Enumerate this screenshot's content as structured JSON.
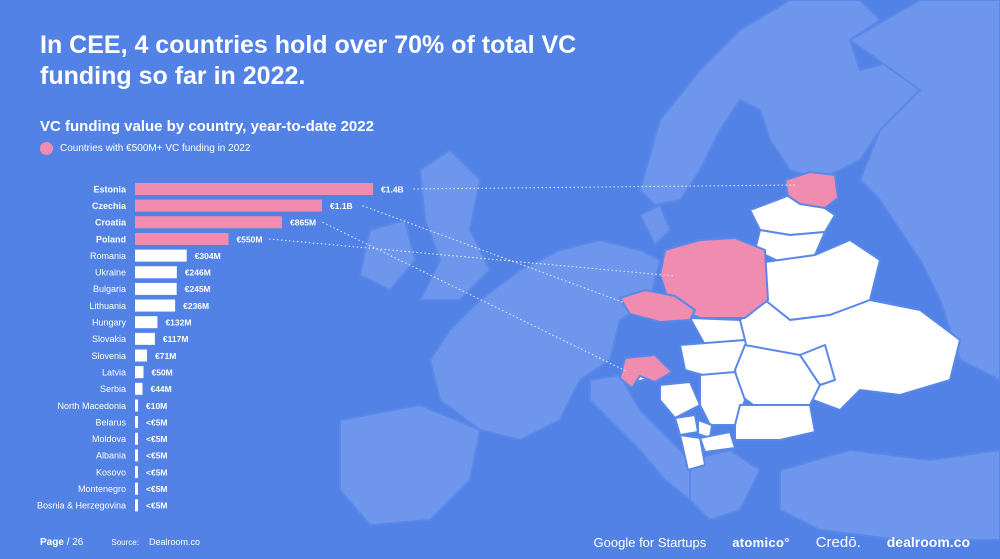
{
  "title": "In CEE, 4 countries hold over 70% of total VC funding so far in 2022.",
  "subtitle": "VC funding value by country, year-to-date 2022",
  "legend": "Countries with €500M+ VC funding in 2022",
  "colors": {
    "background": "#5282e6",
    "highlight": "#f08cb0",
    "bar": "#ffffff"
  },
  "chart_data": {
    "type": "bar",
    "orientation": "horizontal",
    "unit": "€M",
    "categories": [
      "Estonia",
      "Czechia",
      "Croatia",
      "Poland",
      "Romania",
      "Ukraine",
      "Bulgaria",
      "Lithuania",
      "Hungary",
      "Slovakia",
      "Slovenia",
      "Latvia",
      "Serbia",
      "North Macedonia",
      "Belarus",
      "Moldova",
      "Albania",
      "Kosovo",
      "Montenegro",
      "Bosnia & Herzegovina"
    ],
    "values": [
      1400,
      1100,
      865,
      550,
      304,
      246,
      245,
      236,
      132,
      117,
      71,
      50,
      44,
      10,
      5,
      5,
      5,
      5,
      5,
      5
    ],
    "labels": [
      "€1.4B",
      "€1.1B",
      "€865M",
      "€550M",
      "€304M",
      "€246M",
      "€245M",
      "€236M",
      "€132M",
      "€117M",
      "€71M",
      "€50M",
      "€44M",
      "€10M",
      "<€5M",
      "<€5M",
      "<€5M",
      "<€5M",
      "<€5M",
      "<€5M"
    ],
    "highlighted": [
      "Estonia",
      "Czechia",
      "Croatia",
      "Poland"
    ],
    "threshold": 500
  },
  "footer": {
    "page_label": "Page",
    "page_number": "/ 26",
    "source_label": "Source:",
    "source_value": "Dealroom.co"
  },
  "logos": {
    "google_a": "Google",
    "google_b": "for Startups",
    "atomico": "atomico°",
    "credo": "Credō.",
    "dealroom": "dealroom.co"
  }
}
